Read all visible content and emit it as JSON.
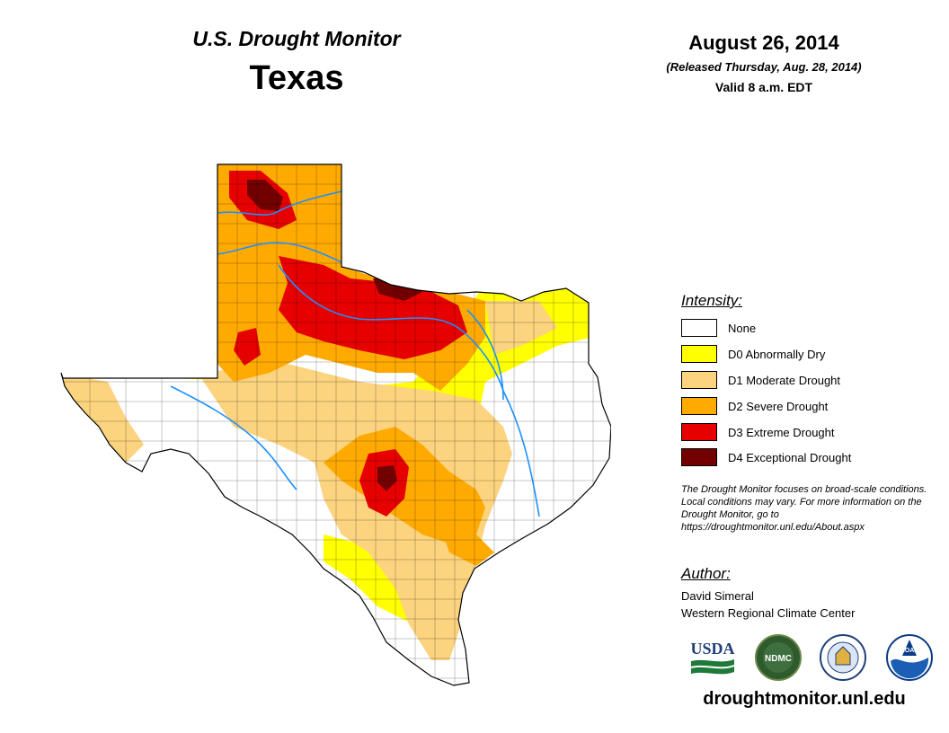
{
  "header": {
    "monitor_title": "U.S. Drought Monitor",
    "state": "Texas",
    "date": "August 26, 2014",
    "released": "(Released Thursday, Aug. 28, 2014)",
    "valid": "Valid 8 a.m. EDT"
  },
  "legend": {
    "title": "Intensity:",
    "items": [
      {
        "label": "None",
        "color": "#ffffff"
      },
      {
        "label": "D0 Abnormally Dry",
        "color": "#ffff00"
      },
      {
        "label": "D1 Moderate Drought",
        "color": "#fcd37f"
      },
      {
        "label": "D2 Severe Drought",
        "color": "#ffaa00"
      },
      {
        "label": "D3 Extreme Drought",
        "color": "#e60000"
      },
      {
        "label": "D4 Exceptional Drought",
        "color": "#730000"
      }
    ]
  },
  "note": "The Drought Monitor focuses on broad-scale conditions. Local conditions may vary. For more information on the Drought Monitor, go to https://droughtmonitor.unl.edu/About.aspx",
  "author": {
    "title": "Author:",
    "name": "David Simeral",
    "org": "Western Regional Climate Center"
  },
  "logos": {
    "usda": "USDA",
    "ndmc": "NDMC",
    "noaa": "NOAA"
  },
  "footer_url": "droughtmonitor.unl.edu"
}
